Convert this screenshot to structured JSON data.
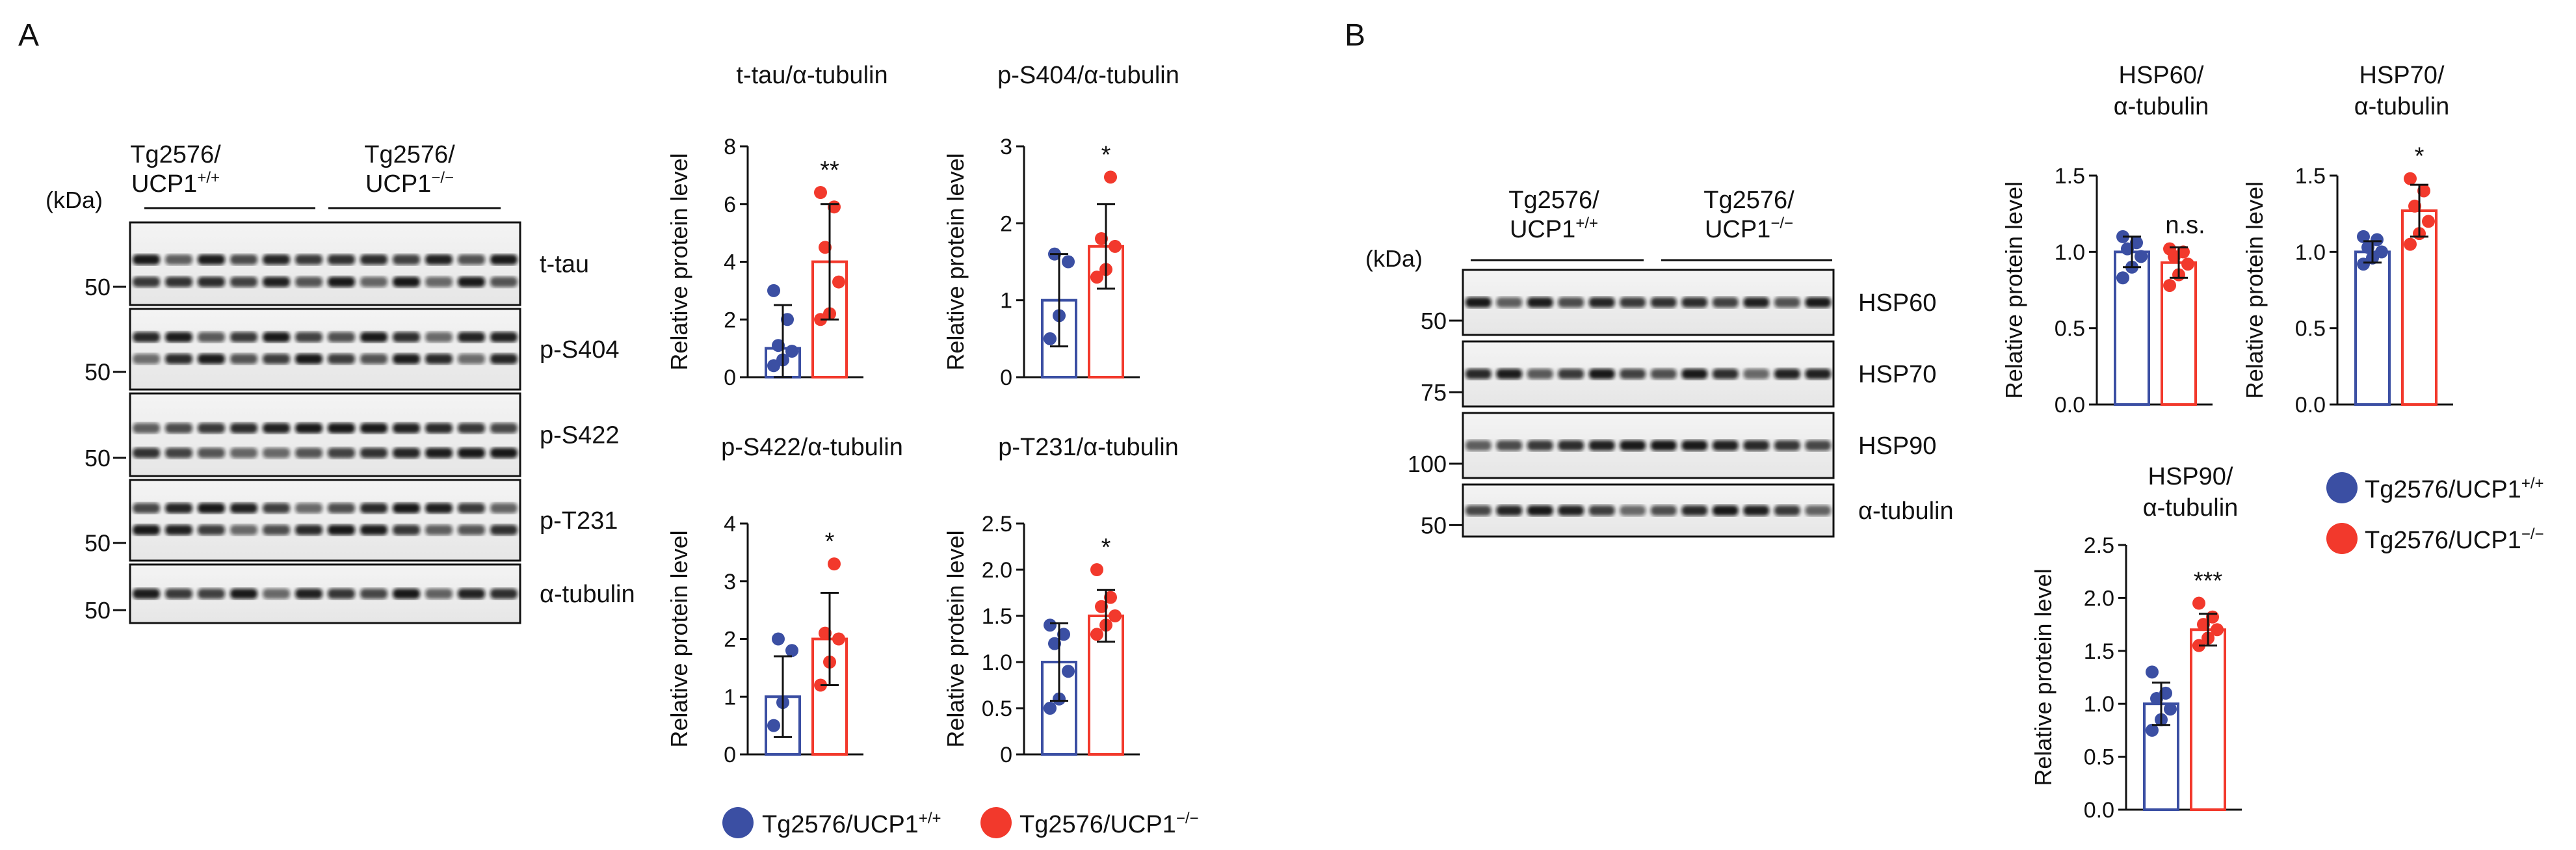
{
  "panel_labels": {
    "a": "A",
    "b": "B"
  },
  "kda_label": "(kDa)",
  "colors": {
    "wt": "#3b4fa3",
    "ko": "#f2392c"
  },
  "panelA": {
    "group1": [
      "Tg2576/",
      "UCP1+/+"
    ],
    "group2": [
      "Tg2576/",
      "UCP1−/−"
    ],
    "blots": [
      {
        "label": "t-tau",
        "marker": "50"
      },
      {
        "label": "p-S404",
        "marker": "50"
      },
      {
        "label": "p-S422",
        "marker": "50"
      },
      {
        "label": "p-T231",
        "marker": "50"
      },
      {
        "label": "α-tubulin",
        "marker": "50"
      }
    ]
  },
  "panelB": {
    "group1": [
      "Tg2576/",
      "UCP1+/+"
    ],
    "group2": [
      "Tg2576/",
      "UCP1−/−"
    ],
    "blots": [
      {
        "label": "HSP60",
        "marker": "50"
      },
      {
        "label": "HSP70",
        "marker": "75"
      },
      {
        "label": "HSP90",
        "marker": "100"
      },
      {
        "label": "α-tubulin",
        "marker": "50"
      }
    ]
  },
  "legendA": {
    "wt": "Tg2576/UCP1+/+",
    "ko": "Tg2576/UCP1−/−"
  },
  "legendB": {
    "wt": "Tg2576/UCP1+/+",
    "ko": "Tg2576/UCP1−/−"
  },
  "chart_data": [
    {
      "type": "bar",
      "title": "t-tau/α-tubulin",
      "ylabel": "Relative protein level",
      "ylim": [
        0,
        8
      ],
      "ticks": [
        "0",
        "2",
        "4",
        "6",
        "8"
      ],
      "significance": "**",
      "series": [
        {
          "name": "Tg2576/UCP1+/+",
          "mean": 1.0,
          "sd": 1.5,
          "points": [
            0.4,
            0.6,
            0.9,
            1.1,
            2.0,
            3.0
          ]
        },
        {
          "name": "Tg2576/UCP1−/−",
          "mean": 4.0,
          "sd": 2.0,
          "points": [
            2.0,
            2.2,
            3.3,
            4.5,
            5.9,
            6.4
          ]
        }
      ]
    },
    {
      "type": "bar",
      "title": "p-S404/α-tubulin",
      "ylabel": "Relative protein level",
      "ylim": [
        0,
        3
      ],
      "ticks": [
        "0",
        "1",
        "2",
        "3"
      ],
      "significance": "*",
      "series": [
        {
          "name": "Tg2576/UCP1+/+",
          "mean": 1.0,
          "sd": 0.6,
          "points": [
            0.5,
            0.8,
            1.5,
            1.6
          ]
        },
        {
          "name": "Tg2576/UCP1−/−",
          "mean": 1.7,
          "sd": 0.55,
          "points": [
            1.3,
            1.4,
            1.7,
            1.8,
            2.6
          ]
        }
      ]
    },
    {
      "type": "bar",
      "title": "p-S422/α-tubulin",
      "ylabel": "Relative protein level",
      "ylim": [
        0,
        4
      ],
      "ticks": [
        "0",
        "1",
        "2",
        "3",
        "4"
      ],
      "significance": "*",
      "series": [
        {
          "name": "Tg2576/UCP1+/+",
          "mean": 1.0,
          "sd": 0.7,
          "points": [
            0.5,
            0.9,
            1.8,
            2.0
          ]
        },
        {
          "name": "Tg2576/UCP1−/−",
          "mean": 2.0,
          "sd": 0.8,
          "points": [
            1.2,
            1.6,
            2.0,
            2.1,
            3.3
          ]
        }
      ]
    },
    {
      "type": "bar",
      "title": "p-T231/α-tubulin",
      "ylabel": "Relative protein level",
      "ylim": [
        0,
        2.5
      ],
      "ticks": [
        "0",
        "0.5",
        "1.0",
        "1.5",
        "2.0",
        "2.5"
      ],
      "significance": "*",
      "series": [
        {
          "name": "Tg2576/UCP1+/+",
          "mean": 1.0,
          "sd": 0.42,
          "points": [
            0.5,
            0.6,
            0.9,
            1.2,
            1.3,
            1.4
          ]
        },
        {
          "name": "Tg2576/UCP1−/−",
          "mean": 1.5,
          "sd": 0.28,
          "points": [
            1.3,
            1.4,
            1.5,
            1.6,
            1.7,
            2.0
          ]
        }
      ]
    },
    {
      "type": "bar",
      "title": "HSP60/",
      "subtitle": "α-tubulin",
      "ylabel": "Relative protein level",
      "ylim": [
        0,
        1.5
      ],
      "ticks": [
        "0.0",
        "0.5",
        "1.0",
        "1.5"
      ],
      "significance": "n.s.",
      "series": [
        {
          "name": "Tg2576/UCP1+/+",
          "mean": 1.0,
          "sd": 0.1,
          "points": [
            0.83,
            0.9,
            0.97,
            1.02,
            1.06,
            1.1
          ]
        },
        {
          "name": "Tg2576/UCP1−/−",
          "mean": 0.93,
          "sd": 0.1,
          "points": [
            0.78,
            0.85,
            0.92,
            0.97,
            1.0,
            1.02
          ]
        }
      ]
    },
    {
      "type": "bar",
      "title": "HSP70/",
      "subtitle": "α-tubulin",
      "ylabel": "Relative protein level",
      "ylim": [
        0,
        1.5
      ],
      "ticks": [
        "0.0",
        "0.5",
        "1.0",
        "1.5"
      ],
      "significance": "*",
      "series": [
        {
          "name": "Tg2576/UCP1+/+",
          "mean": 1.0,
          "sd": 0.07,
          "points": [
            0.92,
            0.96,
            1.0,
            1.03,
            1.08,
            1.1
          ]
        },
        {
          "name": "Tg2576/UCP1−/−",
          "mean": 1.27,
          "sd": 0.17,
          "points": [
            1.05,
            1.12,
            1.2,
            1.3,
            1.4,
            1.48
          ]
        }
      ]
    },
    {
      "type": "bar",
      "title": "HSP90/",
      "subtitle": "α-tubulin",
      "ylabel": "Relative protein level",
      "ylim": [
        0,
        2.5
      ],
      "ticks": [
        "0.0",
        "0.5",
        "1.0",
        "1.5",
        "2.0",
        "2.5"
      ],
      "significance": "***",
      "series": [
        {
          "name": "Tg2576/UCP1+/+",
          "mean": 1.0,
          "sd": 0.2,
          "points": [
            0.75,
            0.85,
            0.95,
            1.05,
            1.1,
            1.3
          ]
        },
        {
          "name": "Tg2576/UCP1−/−",
          "mean": 1.7,
          "sd": 0.15,
          "points": [
            1.55,
            1.62,
            1.7,
            1.75,
            1.82,
            1.95
          ]
        }
      ]
    }
  ]
}
